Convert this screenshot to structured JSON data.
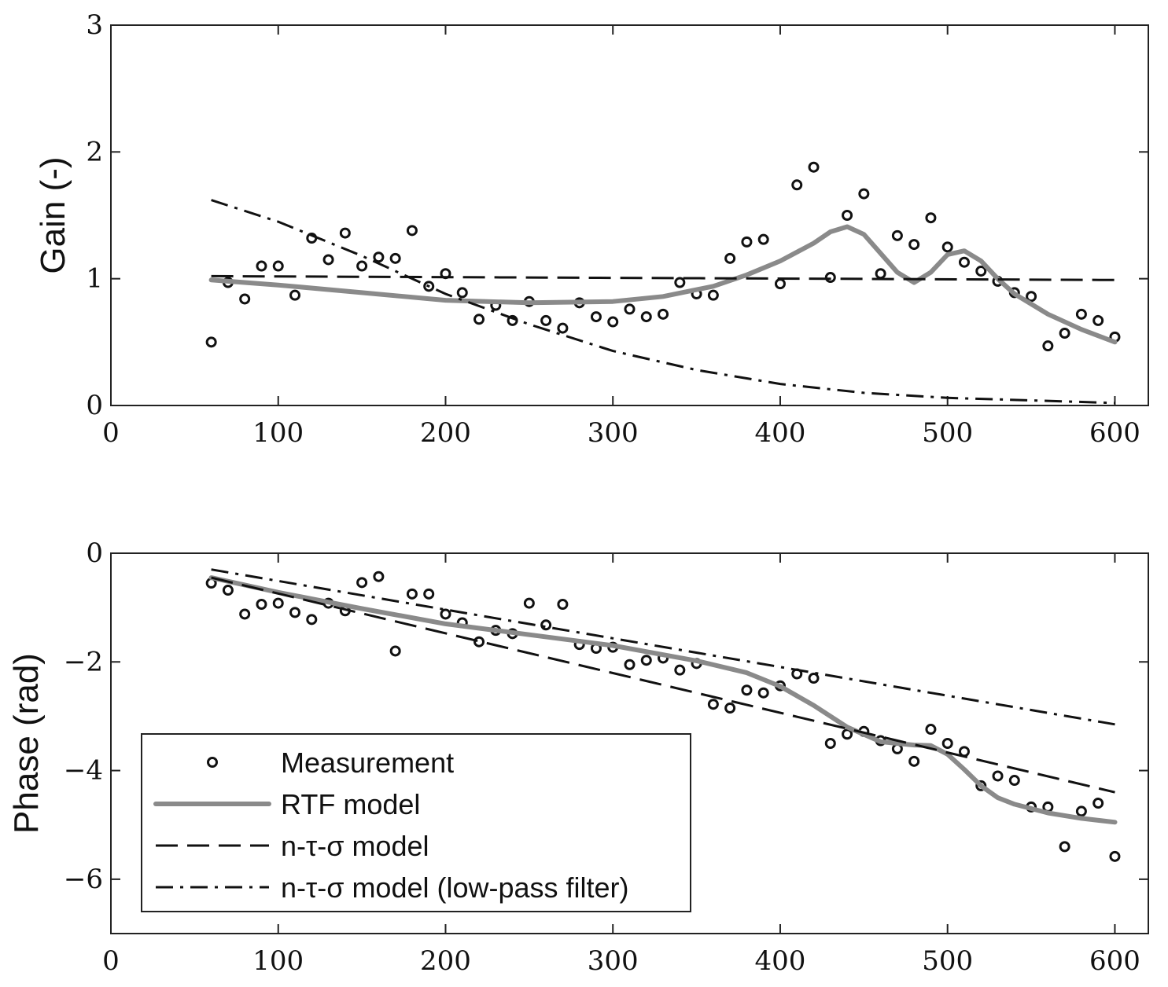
{
  "chart_data": [
    {
      "type": "line",
      "ylabel": "Gain (-)",
      "xlabel": "",
      "xlim": [
        0,
        620
      ],
      "ylim": [
        0,
        3
      ],
      "xticks": [
        "0",
        "100",
        "200",
        "300",
        "400",
        "500",
        "600"
      ],
      "yticks": [
        "0",
        "1",
        "2",
        "3"
      ],
      "grid": false,
      "series": [
        {
          "name": "Measurement",
          "style": "markers",
          "x": [
            60,
            70,
            80,
            90,
            100,
            110,
            120,
            130,
            140,
            150,
            160,
            170,
            180,
            190,
            200,
            210,
            220,
            230,
            240,
            250,
            260,
            270,
            280,
            290,
            300,
            310,
            320,
            330,
            340,
            350,
            360,
            370,
            380,
            390,
            400,
            410,
            420,
            430,
            440,
            450,
            460,
            470,
            480,
            490,
            500,
            510,
            520,
            530,
            540,
            550,
            560,
            570,
            580,
            590,
            600
          ],
          "y": [
            0.5,
            0.97,
            0.84,
            1.1,
            1.1,
            0.87,
            1.32,
            1.15,
            1.36,
            1.1,
            1.17,
            1.16,
            1.38,
            0.94,
            1.04,
            0.89,
            0.68,
            0.79,
            0.67,
            0.82,
            0.67,
            0.61,
            0.81,
            0.7,
            0.66,
            0.76,
            0.7,
            0.72,
            0.97,
            0.88,
            0.87,
            1.16,
            1.29,
            1.31,
            0.96,
            1.74,
            1.88,
            1.01,
            1.5,
            1.67,
            1.04,
            1.34,
            1.27,
            1.48,
            1.25,
            1.13,
            1.06,
            0.98,
            0.89,
            0.86,
            0.47,
            0.57,
            0.72,
            0.67,
            0.54
          ]
        },
        {
          "name": "RTF model",
          "style": "solid-gray",
          "x": [
            60,
            100,
            150,
            200,
            250,
            300,
            330,
            360,
            380,
            400,
            420,
            430,
            440,
            450,
            460,
            470,
            480,
            490,
            500,
            510,
            520,
            530,
            540,
            560,
            580,
            600
          ],
          "y": [
            0.99,
            0.95,
            0.89,
            0.83,
            0.81,
            0.82,
            0.86,
            0.94,
            1.03,
            1.14,
            1.28,
            1.37,
            1.41,
            1.35,
            1.2,
            1.05,
            0.97,
            1.05,
            1.19,
            1.22,
            1.14,
            1.0,
            0.88,
            0.72,
            0.6,
            0.5
          ]
        },
        {
          "name": "n-τ-σ model",
          "style": "dashed",
          "x": [
            60,
            600
          ],
          "y": [
            1.02,
            0.99
          ]
        },
        {
          "name": "n-τ-σ model (low-pass filter)",
          "style": "dashdot",
          "x": [
            60,
            100,
            150,
            200,
            250,
            300,
            350,
            400,
            450,
            500,
            550,
            600
          ],
          "y": [
            1.62,
            1.45,
            1.18,
            0.88,
            0.64,
            0.43,
            0.28,
            0.17,
            0.1,
            0.06,
            0.04,
            0.02
          ]
        }
      ]
    },
    {
      "type": "line",
      "ylabel": "Phase (rad)",
      "xlabel": "",
      "xlim": [
        0,
        620
      ],
      "ylim": [
        -7,
        0
      ],
      "xticks": [
        "0",
        "100",
        "200",
        "300",
        "400",
        "500",
        "600"
      ],
      "yticks": [
        "0",
        "−2",
        "−4",
        "−6"
      ],
      "grid": false,
      "legend_position": "lower-left",
      "series": [
        {
          "name": "Measurement",
          "style": "markers",
          "x": [
            60,
            70,
            80,
            90,
            100,
            110,
            120,
            130,
            140,
            150,
            160,
            170,
            180,
            190,
            200,
            210,
            220,
            230,
            240,
            250,
            260,
            270,
            280,
            290,
            300,
            310,
            320,
            330,
            340,
            350,
            360,
            370,
            380,
            390,
            400,
            410,
            420,
            430,
            440,
            450,
            460,
            470,
            480,
            490,
            500,
            510,
            520,
            530,
            540,
            550,
            560,
            570,
            580,
            590,
            600
          ],
          "y": [
            -0.55,
            -0.68,
            -1.12,
            -0.94,
            -0.92,
            -1.09,
            -1.22,
            -0.92,
            -1.06,
            -0.54,
            -0.43,
            -1.8,
            -0.75,
            -0.75,
            -1.12,
            -1.28,
            -1.63,
            -1.42,
            -1.48,
            -0.92,
            -1.32,
            -0.94,
            -1.68,
            -1.75,
            -1.73,
            -2.05,
            -1.97,
            -1.93,
            -2.15,
            -2.03,
            -2.78,
            -2.85,
            -2.52,
            -2.57,
            -2.44,
            -2.22,
            -2.3,
            -3.5,
            -3.33,
            -3.28,
            -3.45,
            -3.6,
            -3.83,
            -3.24,
            -3.5,
            -3.65,
            -4.28,
            -4.1,
            -4.18,
            -4.67,
            -4.67,
            -5.4,
            -4.75,
            -4.6,
            -5.58
          ]
        },
        {
          "name": "RTF model",
          "style": "solid-gray",
          "x": [
            60,
            100,
            150,
            200,
            250,
            300,
            350,
            380,
            400,
            420,
            440,
            460,
            480,
            490,
            500,
            510,
            520,
            530,
            540,
            560,
            580,
            600
          ],
          "y": [
            -0.45,
            -0.72,
            -1.02,
            -1.3,
            -1.5,
            -1.7,
            -1.98,
            -2.2,
            -2.45,
            -2.8,
            -3.2,
            -3.47,
            -3.53,
            -3.54,
            -3.7,
            -3.98,
            -4.28,
            -4.5,
            -4.62,
            -4.78,
            -4.88,
            -4.95
          ]
        },
        {
          "name": "n-τ-σ model",
          "style": "dashed",
          "x": [
            60,
            600
          ],
          "y": [
            -0.45,
            -4.4
          ]
        },
        {
          "name": "n-τ-σ model (low-pass filter)",
          "style": "dashdot",
          "x": [
            60,
            600
          ],
          "y": [
            -0.3,
            -3.15
          ]
        }
      ]
    }
  ],
  "legend": {
    "entries": [
      {
        "label": "Measurement",
        "style": "markers"
      },
      {
        "label": "RTF model",
        "style": "solid-gray"
      },
      {
        "label": "n-τ-σ model",
        "style": "dashed"
      },
      {
        "label": "n-τ-σ model (low-pass filter)",
        "style": "dashdot"
      }
    ]
  },
  "colors": {
    "axes": "#222222",
    "markers": "#111111",
    "rtf_line": "#8a8a8a",
    "model_lines": "#111111"
  }
}
